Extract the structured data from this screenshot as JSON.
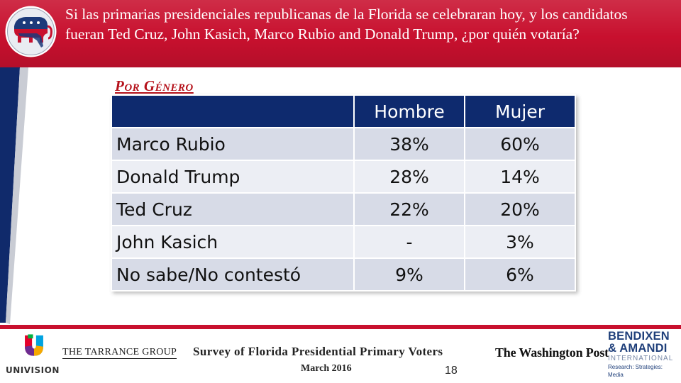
{
  "header": {
    "title": "Si las primarias presidenciales republicanas de la Florida se celebraran hoy, y los candidatos fueran Ted Cruz, John Kasich, Marco Rubio and Donald Trump, ¿por quién votaría?",
    "logo_icon": "republican-elephant-florida-icon",
    "accent_color": "#c8102e"
  },
  "section": {
    "label": "Por Género"
  },
  "table": {
    "columns": [
      "",
      "Hombre",
      "Mujer"
    ],
    "rows": [
      {
        "name": "Marco Rubio",
        "hombre": "38%",
        "mujer": "60%"
      },
      {
        "name": "Donald Trump",
        "hombre": "28%",
        "mujer": "14%"
      },
      {
        "name": "Ted Cruz",
        "hombre": "22%",
        "mujer": "20%"
      },
      {
        "name": "John Kasich",
        "hombre": "-",
        "mujer": "3%"
      },
      {
        "name": "No sabe/No contestó",
        "hombre": "9%",
        "mujer": "6%"
      }
    ],
    "header_color": "#0e2a6e"
  },
  "footer": {
    "univision": "UNIVISION",
    "tarrance": "THE TARRANCE GROUP",
    "survey_title": "Survey of Florida Presidential Primary Voters",
    "survey_date": "March 2016",
    "page_number": "18",
    "washington_post": "The Washington Post",
    "bendixen_line1": "BENDIXEN",
    "bendixen_line2": "& AMANDI",
    "bendixen_line3": "INTERNATIONAL",
    "bendixen_tagline": "Research: Strategies: Media"
  }
}
